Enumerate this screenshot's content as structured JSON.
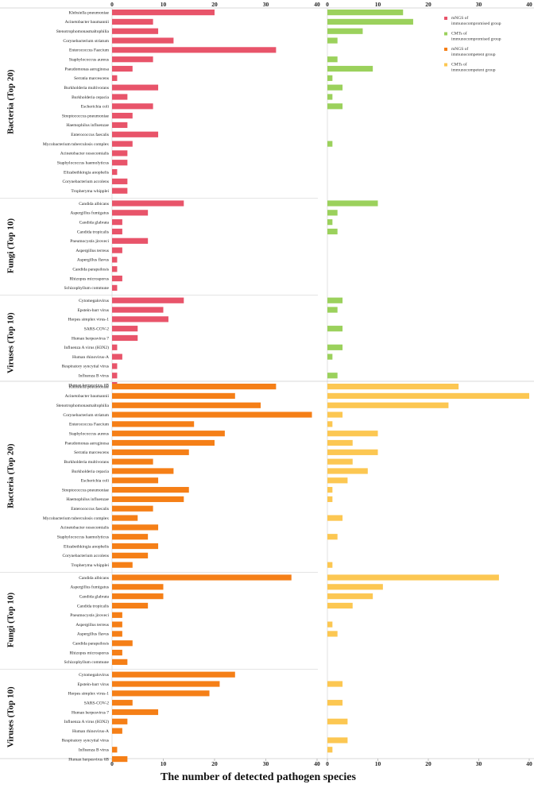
{
  "chart_data": {
    "type": "bar",
    "orientation": "horizontal",
    "xlabel": "The number of detected pathogen species",
    "xlim": [
      0,
      40
    ],
    "xticks": [
      0,
      10,
      20,
      30,
      40
    ],
    "legend": {
      "placement": "top-right",
      "entries": [
        {
          "text": "mNGS of immunocompromised group",
          "color": "#e8546a"
        },
        {
          "text": "CMTs of immunocompromised group",
          "color": "#9bd15c"
        },
        {
          "text": "mNGS of immunocompetent group",
          "color": "#f57f17"
        },
        {
          "text": "CMTs of immunocompetent group",
          "color": "#fcc752"
        }
      ]
    },
    "groups": [
      {
        "name": "Bacteria (Top 20)",
        "categories": [
          "Klebsiella pneumoniae",
          "Acinetobacter baumannii",
          "Stenotrophomonasmaltophilia",
          "Corynebacterium striatum",
          "Enterococcus Faecium",
          "Staphylococcus aureus",
          "Pseudomonas aeruginosa",
          "Serratia marcescens",
          "Burkholderia multivorans",
          "Burkholderia cepacia",
          "Escherichia coli",
          "Streptococcus pneumoniae",
          "Haemophilus influenzae",
          "Enterococcus faecalis",
          "Mycobacterium tuberculosis complex",
          "Acinetobacter nosocomialis",
          "Staphylococcus haemolyticus",
          "Elizabethkingia anophelis",
          "Corynebacterium accolens",
          "Tropheryma whipplei"
        ]
      },
      {
        "name": "Fungi (Top 10)",
        "categories": [
          "Candida albicans",
          "Aspergillus fumigatus",
          "Candida glabrata",
          "Candida tropicalis",
          "Pneumocystis jiroveci",
          "Aspergillus terreus",
          "Aspergillus flavus",
          "Candida parapsilosis",
          "Rhizopus microsporus",
          "Schizophyllum commune"
        ]
      },
      {
        "name": "Viruses (Top 10)",
        "categories": [
          "Cytomegalovirus",
          "Epstein-barr virus",
          "Herpes simplex virus-1",
          "SARS-COV-2",
          "Human herpesvirus 7",
          "Influenza A virus (H3N2)",
          "Human rhinovirus-A",
          "Respiratory syncytial virus",
          "Influenza B virus",
          "Human herpesvirus 6B"
        ]
      }
    ],
    "panels": [
      {
        "name": "immunocompromised",
        "series": [
          {
            "name": "mNGS of immunocompromised group",
            "color": "#e8546a",
            "values": [
              20,
              8,
              9,
              12,
              32,
              8,
              4,
              1,
              9,
              3,
              8,
              4,
              3,
              9,
              4,
              3,
              3,
              1,
              3,
              3,
              14,
              7,
              2,
              2,
              7,
              2,
              1,
              1,
              2,
              1,
              14,
              10,
              11,
              5,
              5,
              1,
              2,
              1,
              1,
              1
            ]
          },
          {
            "name": "CMTs of immunocompromised group",
            "color": "#9bd15c",
            "values": [
              15,
              17,
              7,
              2,
              0,
              2,
              9,
              1,
              3,
              1,
              3,
              0,
              0,
              0,
              1,
              0,
              0,
              0,
              0,
              0,
              10,
              2,
              1,
              2,
              0,
              0,
              0,
              0,
              0,
              0,
              3,
              2,
              0,
              3,
              0,
              3,
              1,
              0,
              2,
              0
            ]
          }
        ]
      },
      {
        "name": "immunocompetent",
        "series": [
          {
            "name": "mNGS of immunocompetent group",
            "color": "#f57f17",
            "values": [
              32,
              24,
              29,
              39,
              16,
              22,
              20,
              15,
              8,
              12,
              9,
              15,
              14,
              8,
              5,
              9,
              7,
              9,
              7,
              4,
              35,
              10,
              10,
              7,
              2,
              2,
              2,
              4,
              2,
              3,
              24,
              21,
              19,
              4,
              9,
              3,
              2,
              0,
              1,
              3
            ]
          },
          {
            "name": "CMTs of immunocompetent group",
            "color": "#fcc752",
            "values": [
              26,
              40,
              24,
              3,
              1,
              10,
              5,
              10,
              5,
              8,
              4,
              1,
              1,
              0,
              3,
              0,
              2,
              0,
              0,
              1,
              34,
              11,
              9,
              5,
              0,
              1,
              2,
              0,
              0,
              0,
              0,
              3,
              0,
              3,
              0,
              4,
              0,
              4,
              1,
              0
            ]
          }
        ]
      }
    ]
  }
}
